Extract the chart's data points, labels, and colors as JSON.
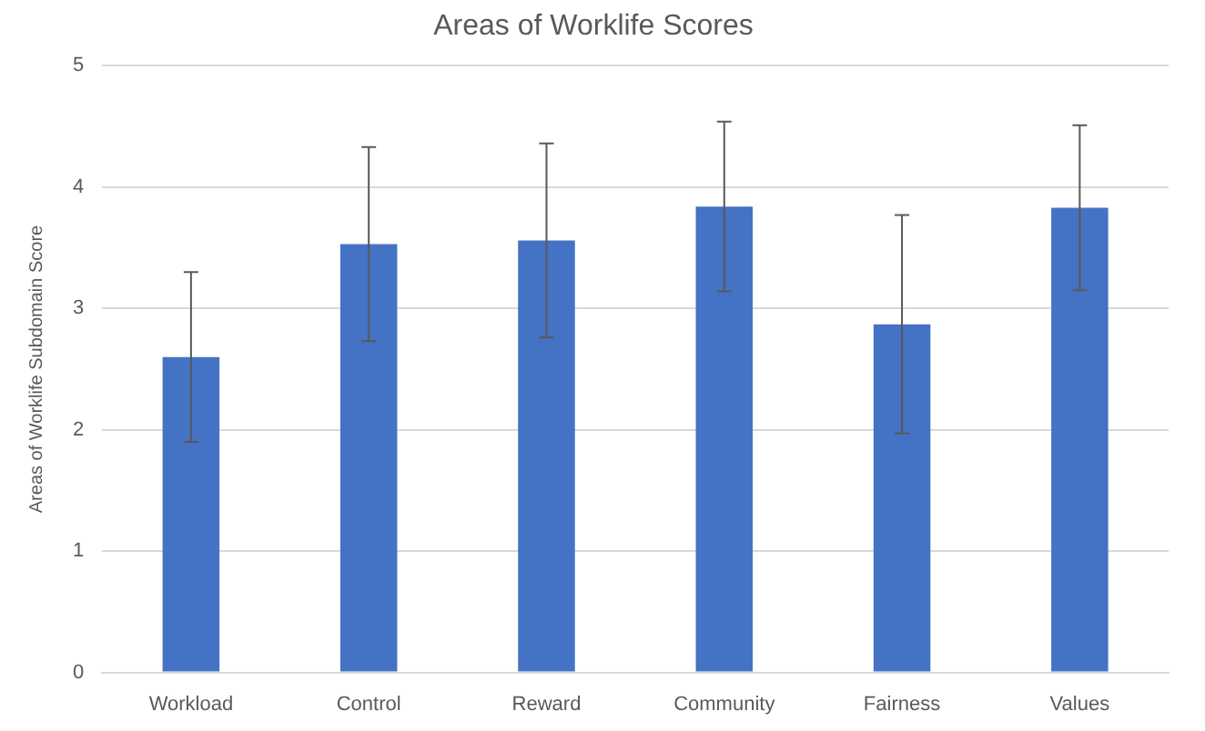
{
  "chart_data": {
    "type": "bar",
    "title": "Areas of Worklife Scores",
    "ylabel": "Areas of Worklife Subdomain Score",
    "categories": [
      "Workload",
      "Control",
      "Reward",
      "Community",
      "Fairness",
      "Values"
    ],
    "values": [
      2.6,
      3.53,
      3.56,
      3.84,
      2.87,
      3.83
    ],
    "errors": [
      0.7,
      0.8,
      0.8,
      0.7,
      0.9,
      0.68
    ],
    "color": "#4472c4",
    "ylim": [
      0,
      5
    ],
    "yticks": [
      0,
      1,
      2,
      3,
      4,
      5
    ],
    "grid": "y"
  }
}
